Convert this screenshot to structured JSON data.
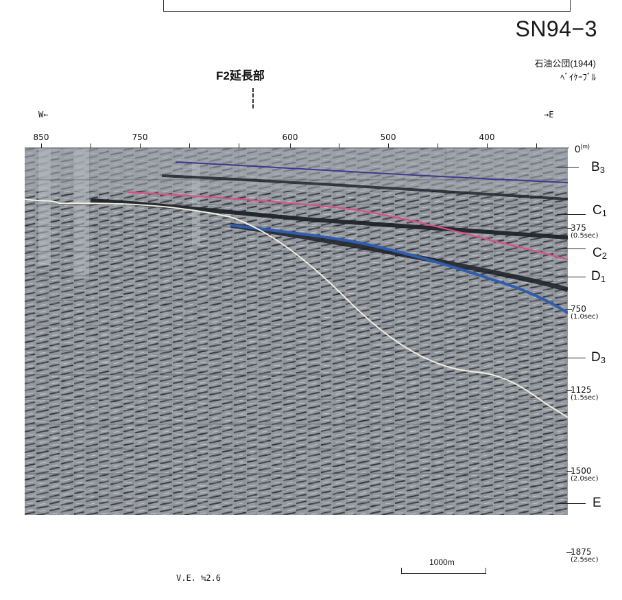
{
  "title": "SN94−3",
  "source": {
    "line1": "石油公団(1944)",
    "line2": "ﾍﾞｲｹｰﾌﾞﾙ"
  },
  "fault": {
    "label": "F2延長部"
  },
  "direction": {
    "west": "W←",
    "east": "→E"
  },
  "x_axis": {
    "ticks": [
      "850",
      "750",
      "600",
      "500",
      "400"
    ]
  },
  "depth_axis": {
    "unit": "(m)",
    "zero": "0",
    "ticks": [
      {
        "depth": "375",
        "time": "(0.5sec)"
      },
      {
        "depth": "750",
        "time": "(1.0sec)"
      },
      {
        "depth": "1125",
        "time": "(1.5sec)"
      },
      {
        "depth": "1500",
        "time": "(2.0sec)"
      },
      {
        "depth": "1875",
        "time": "(2.5sec)"
      }
    ]
  },
  "layers": [
    {
      "main": "B",
      "sub": "3"
    },
    {
      "main": "C",
      "sub": "1"
    },
    {
      "main": "C",
      "sub": "2"
    },
    {
      "main": "D",
      "sub": "1"
    },
    {
      "main": "D",
      "sub": "3"
    },
    {
      "main": "E",
      "sub": ""
    }
  ],
  "footer": {
    "ve": "V.E. ≒2.6",
    "scale": "1000m"
  },
  "colors": {
    "section_bg": "#8a8f98",
    "reflector_dark": "#1b1e24",
    "fault_line": "#f2efe0",
    "horizon_pink": "#d94f86",
    "horizon_blue": "#2f5db0",
    "horizon_purple": "#3a3a8c"
  }
}
